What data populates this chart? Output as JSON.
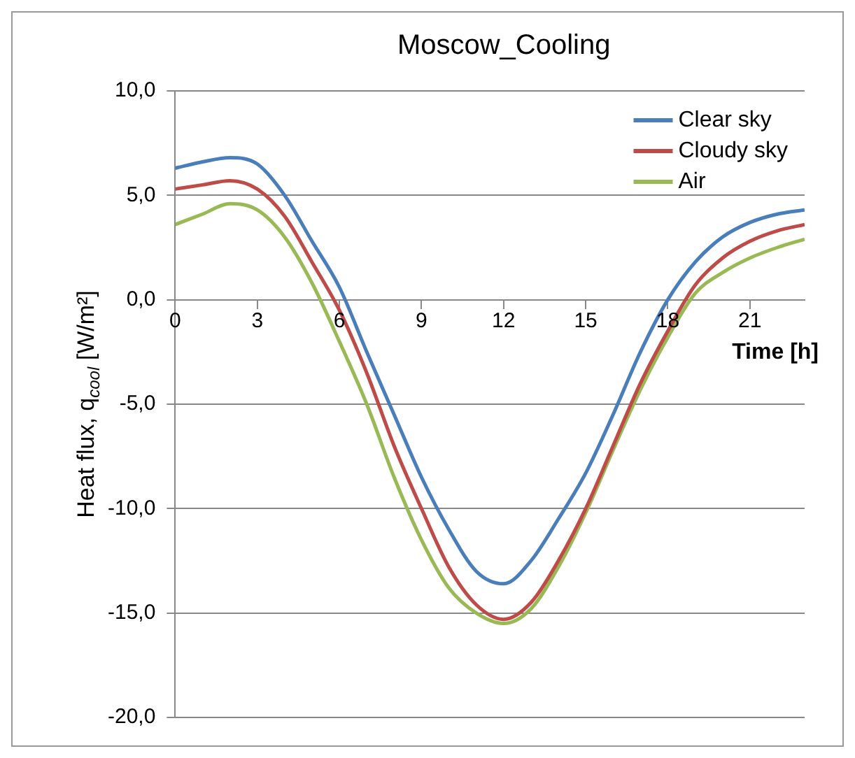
{
  "chart_data": {
    "type": "line",
    "title": "Moscow_Cooling",
    "xlabel": "Time [h]",
    "ylabel": "Heat flux, q$_{cool}$ [W/m²]",
    "x": [
      0,
      1,
      2,
      3,
      4,
      5,
      6,
      7,
      8,
      9,
      10,
      11,
      12,
      13,
      14,
      15,
      16,
      17,
      18,
      19,
      20,
      21,
      22,
      23
    ],
    "series": [
      {
        "name": "Clear sky",
        "color": "#4a7ebb",
        "values": [
          6.3,
          6.6,
          6.8,
          6.5,
          5.0,
          2.8,
          0.6,
          -2.5,
          -5.5,
          -8.5,
          -11,
          -13,
          -13.6,
          -12.5,
          -10.5,
          -8.3,
          -5.5,
          -2.5,
          0,
          1.8,
          3.0,
          3.7,
          4.1,
          4.3
        ]
      },
      {
        "name": "Cloudy sky",
        "color": "#be4b48",
        "values": [
          5.3,
          5.5,
          5.7,
          5.3,
          4.0,
          1.8,
          -0.5,
          -3.5,
          -7,
          -10,
          -12.8,
          -14.6,
          -15.3,
          -14.5,
          -12.5,
          -10,
          -7,
          -4,
          -1.5,
          0.7,
          2.0,
          2.8,
          3.3,
          3.6
        ]
      },
      {
        "name": "Air",
        "color": "#98b954",
        "values": [
          3.6,
          4.1,
          4.6,
          4.3,
          3.0,
          0.8,
          -2,
          -5,
          -8.5,
          -11.5,
          -13.8,
          -15,
          -15.5,
          -14.8,
          -12.8,
          -10.2,
          -7.2,
          -4.3,
          -1.8,
          0.3,
          1.3,
          2.0,
          2.5,
          2.9
        ]
      }
    ],
    "xlim": [
      0,
      23
    ],
    "xticks": [
      0,
      3,
      6,
      9,
      12,
      15,
      18,
      21
    ],
    "ylim": [
      -20,
      10
    ],
    "yticks": [
      {
        "value": -20,
        "label": "-20,0"
      },
      {
        "value": -15,
        "label": "-15,0"
      },
      {
        "value": -10,
        "label": "-10,0"
      },
      {
        "value": -5,
        "label": "-5,0"
      },
      {
        "value": 0,
        "label": "0,0"
      },
      {
        "value": 5,
        "label": "5,0"
      },
      {
        "value": 10,
        "label": "10,0"
      }
    ],
    "grid": "y",
    "legend": "top right",
    "marker": "none",
    "line_style": "solid"
  }
}
